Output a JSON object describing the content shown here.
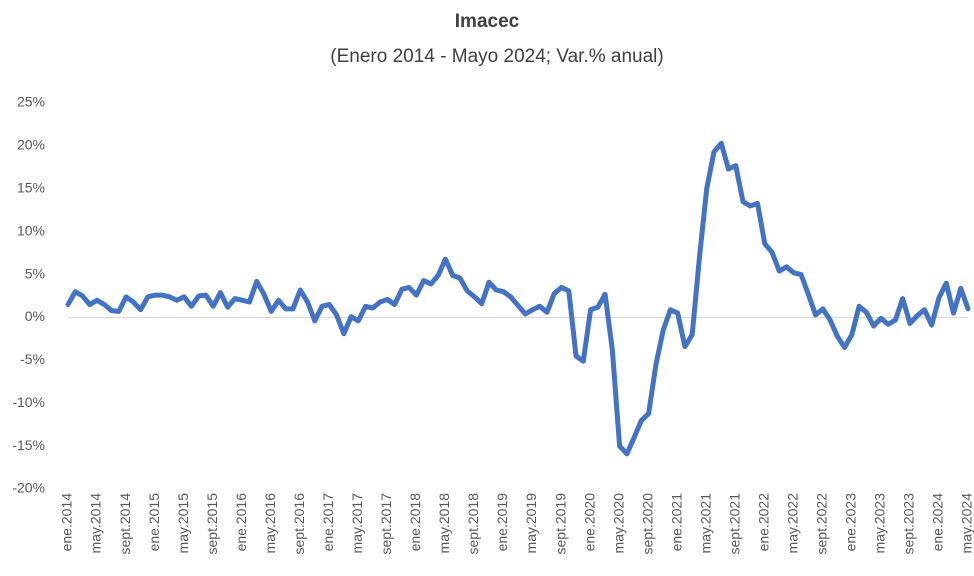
{
  "chart_data": {
    "type": "line",
    "title": "Imacec",
    "subtitle": "(Enero 2014 - Mayo 2024; Var.% anual)",
    "categories": [
      "ene.2014",
      null,
      null,
      null,
      "may.2014",
      null,
      null,
      null,
      "sept.2014",
      null,
      null,
      null,
      "ene.2015",
      null,
      null,
      null,
      "may.2015",
      null,
      null,
      null,
      "sept.2015",
      null,
      null,
      null,
      "ene.2016",
      null,
      null,
      null,
      "may.2016",
      null,
      null,
      null,
      "sept.2016",
      null,
      null,
      null,
      "ene.2017",
      null,
      null,
      null,
      "may.2017",
      null,
      null,
      null,
      "sept.2017",
      null,
      null,
      null,
      "ene.2018",
      null,
      null,
      null,
      "may.2018",
      null,
      null,
      null,
      "sept.2018",
      null,
      null,
      null,
      "ene.2019",
      null,
      null,
      null,
      "may.2019",
      null,
      null,
      null,
      "sept.2019",
      null,
      null,
      null,
      "ene.2020",
      null,
      null,
      null,
      "may.2020",
      null,
      null,
      null,
      "sept.2020",
      null,
      null,
      null,
      "ene.2021",
      null,
      null,
      null,
      "may.2021",
      null,
      null,
      null,
      "sept.2021",
      null,
      null,
      null,
      "ene.2022",
      null,
      null,
      null,
      "may.2022",
      null,
      null,
      null,
      "sept.2022",
      null,
      null,
      null,
      "ene.2023",
      null,
      null,
      null,
      "may.2023",
      null,
      null,
      null,
      "sept.2023",
      null,
      null,
      null,
      "ene.2024",
      null,
      null,
      null,
      "may.2024"
    ],
    "series": [
      {
        "name": "Imacec",
        "color": "#4472c4",
        "values": [
          1.5,
          3.0,
          2.5,
          1.5,
          2.0,
          1.5,
          0.8,
          0.7,
          2.4,
          1.8,
          0.9,
          2.4,
          2.6,
          2.6,
          2.4,
          2.0,
          2.4,
          1.3,
          2.5,
          2.6,
          1.3,
          2.9,
          1.2,
          2.2,
          2.0,
          1.8,
          4.2,
          2.7,
          0.7,
          2.0,
          1.0,
          1.0,
          3.2,
          1.8,
          -0.4,
          1.3,
          1.5,
          0.3,
          -1.9,
          0.1,
          -0.4,
          1.3,
          1.1,
          1.8,
          2.1,
          1.5,
          3.3,
          3.5,
          2.6,
          4.3,
          3.9,
          4.9,
          6.8,
          4.9,
          4.6,
          3.1,
          2.4,
          1.6,
          4.1,
          3.2,
          3.0,
          2.4,
          1.4,
          0.4,
          0.9,
          1.3,
          0.6,
          2.8,
          3.5,
          3.1,
          -4.5,
          -5.1,
          0.9,
          1.2,
          2.7,
          -3.8,
          -15.0,
          -15.9,
          -14.0,
          -12.0,
          -11.2,
          -5.5,
          -1.5,
          0.9,
          0.5,
          -3.4,
          -2.0,
          7.0,
          15.0,
          19.3,
          20.3,
          17.3,
          17.7,
          13.5,
          13.0,
          13.3,
          8.6,
          7.6,
          5.4,
          5.9,
          5.2,
          5.0,
          2.7,
          0.3,
          1.0,
          -0.3,
          -2.2,
          -3.5,
          -2.0,
          1.3,
          0.6,
          -1.0,
          -0.1,
          -0.8,
          -0.3,
          2.2,
          -0.7,
          0.2,
          0.9,
          -0.9,
          2.3,
          4.0,
          0.5,
          3.4,
          1.0
        ]
      }
    ],
    "ylim": [
      -20,
      25
    ],
    "yticks": [
      {
        "value": -20,
        "label": "-20%"
      },
      {
        "value": -15,
        "label": "-15%"
      },
      {
        "value": -10,
        "label": "-10%"
      },
      {
        "value": -5,
        "label": "-5%"
      },
      {
        "value": 0,
        "label": "0%"
      },
      {
        "value": 5,
        "label": "5%"
      },
      {
        "value": 10,
        "label": "10%"
      },
      {
        "value": 15,
        "label": "15%"
      },
      {
        "value": 20,
        "label": "20%"
      },
      {
        "value": 25,
        "label": "25%"
      }
    ],
    "grid": false
  }
}
